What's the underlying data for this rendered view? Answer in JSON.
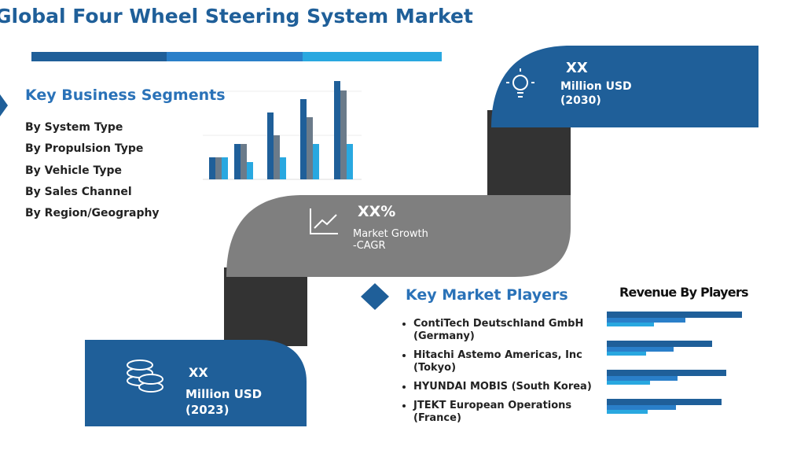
{
  "header": {
    "title": "Global Four Wheel Steering System Market"
  },
  "segments": {
    "heading": "Key Business Segments",
    "items": [
      "By System Type",
      "By Propulsion Type",
      "By Vehicle Type",
      "By Sales Channel",
      "By Region/Geography"
    ]
  },
  "forecast": {
    "value": "XX",
    "unit": "Million USD",
    "year": "(2030)"
  },
  "growth": {
    "value": "XX%",
    "label_1": "Market Growth",
    "label_2": "-CAGR"
  },
  "players": {
    "heading": "Key Market Players",
    "items": [
      "ContiTech Deutschland GmbH (Germany)",
      "Hitachi Astemo Americas, Inc (Tokyo)",
      "HYUNDAI MOBIS (South Korea)",
      "JTEKT European Operations (France)"
    ]
  },
  "revenue": {
    "heading": "Revenue By Players"
  },
  "base": {
    "value": "XX",
    "unit": "Million USD",
    "year": "(2023)"
  }
}
